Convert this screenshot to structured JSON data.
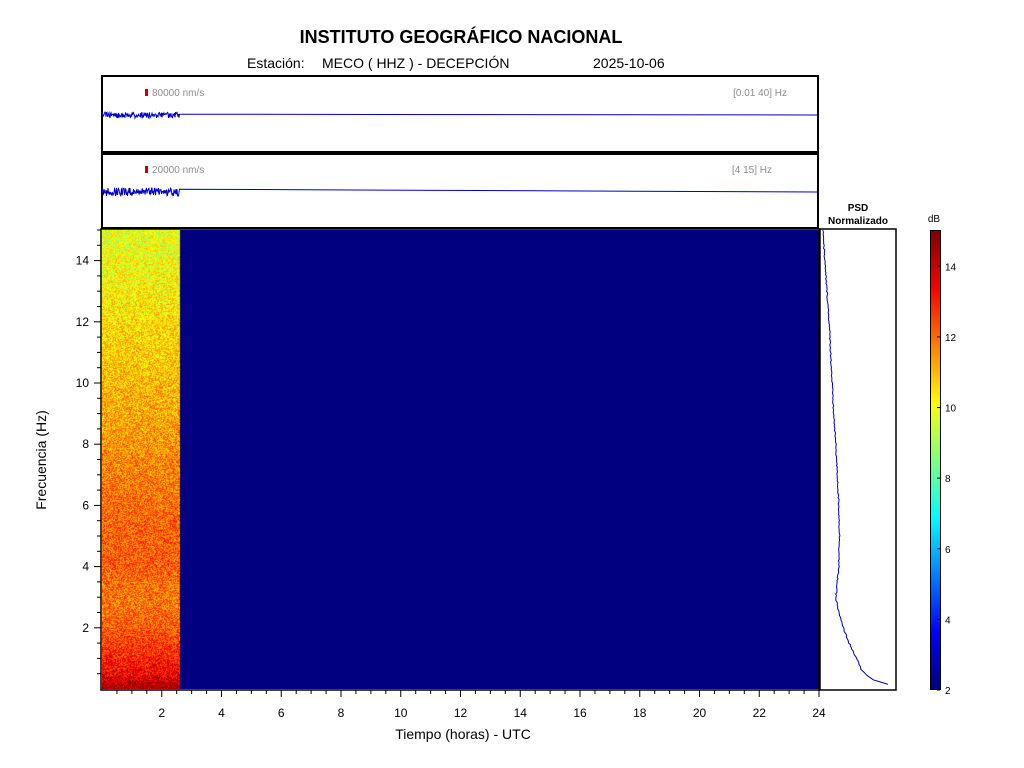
{
  "header": {
    "title": "INSTITUTO GEOGRÁFICO NACIONAL",
    "station_prefix": "Estación:",
    "station": "MECO ( HHZ ) - DECEPCIÓN",
    "date": "2025-10-06"
  },
  "traces": [
    {
      "scale_label": "80000 nm/s",
      "band_label": "[0.01 40] Hz",
      "data_end_hour": 2.6
    },
    {
      "scale_label": "20000 nm/s",
      "band_label": "[4 15] Hz",
      "data_end_hour": 2.6
    }
  ],
  "psd": {
    "title_line1": "PSD",
    "title_line2": "Normalizado"
  },
  "colorbar": {
    "unit": "dB",
    "range": [
      2,
      15
    ],
    "ticks": [
      2,
      4,
      6,
      8,
      10,
      12,
      14
    ]
  },
  "colors": {
    "trace": "#0000cc",
    "psd_line": "#0000bb",
    "scale_marker": "#cc0000",
    "no_data": "#00008f"
  },
  "chart_data": {
    "type": "heatmap",
    "xlabel": "Tiempo (horas) - UTC",
    "ylabel": "Frecuencia  (Hz)",
    "xlim": [
      0,
      24
    ],
    "ylim": [
      0,
      15
    ],
    "xticks": [
      2,
      4,
      6,
      8,
      10,
      12,
      14,
      16,
      18,
      20,
      22,
      24
    ],
    "yticks": [
      2,
      4,
      6,
      8,
      10,
      12,
      14
    ],
    "data_end_hour": 2.6,
    "no_data_db": 2,
    "spectrum_db_by_frequency": {
      "frequency_hz": [
        0.1,
        0.5,
        1,
        2,
        3,
        4,
        6,
        8,
        10,
        12,
        14,
        15
      ],
      "db": [
        14.5,
        13.5,
        13,
        12.2,
        11.8,
        12.2,
        12.0,
        11.5,
        11.0,
        10.5,
        10.0,
        9.8
      ]
    },
    "psd_normalized": {
      "frequency_hz": [
        0.1,
        0.3,
        0.6,
        1,
        1.5,
        2,
        2.5,
        3,
        3.5,
        4,
        5,
        6,
        7,
        8,
        9,
        10,
        11,
        12,
        13,
        14,
        15
      ],
      "value": [
        0.98,
        0.7,
        0.55,
        0.48,
        0.38,
        0.3,
        0.24,
        0.2,
        0.22,
        0.24,
        0.25,
        0.24,
        0.22,
        0.2,
        0.17,
        0.15,
        0.13,
        0.11,
        0.08,
        0.05,
        0.03
      ]
    }
  }
}
